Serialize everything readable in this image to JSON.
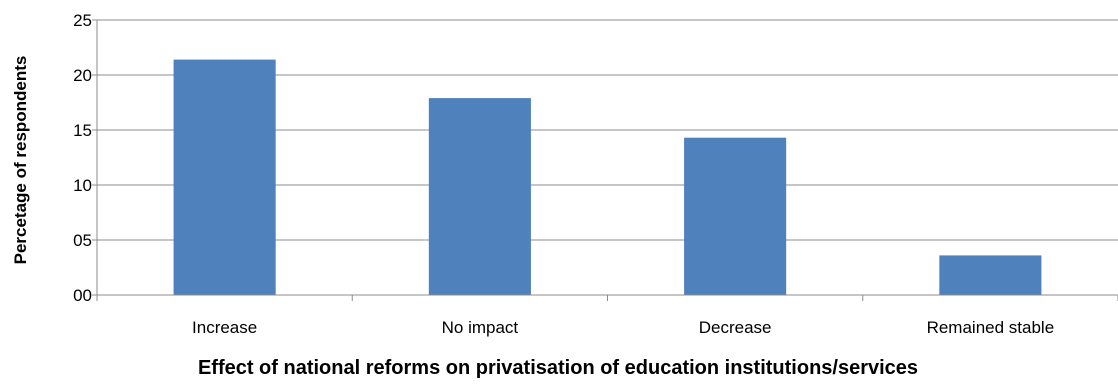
{
  "chart_data": {
    "type": "bar",
    "categories": [
      "Increase",
      "No impact",
      "Decrease",
      "Remained stable"
    ],
    "values": [
      21.4,
      17.9,
      14.3,
      3.6
    ],
    "title": "",
    "xlabel": "Effect of national reforms on privatisation of education institutions/services",
    "ylabel": "Percetage of respondents",
    "ylim": [
      0,
      25
    ],
    "yticks": [
      0,
      5,
      10,
      15,
      20,
      25
    ],
    "ytick_labels": [
      "00",
      "05",
      "10",
      "15",
      "20",
      "25"
    ],
    "grid": true,
    "legend": "none",
    "bar_color": "#4f81bd"
  }
}
